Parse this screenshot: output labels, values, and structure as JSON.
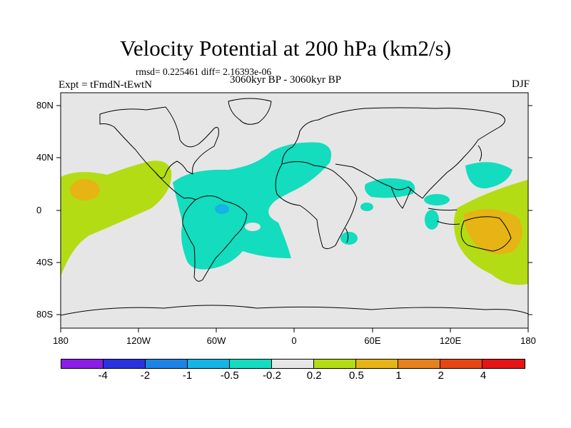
{
  "header": {
    "title": "Velocity Potential at 200 hPa (km2/s)",
    "stats": "rmsd= 0.225461  diff= 2.16393e-06",
    "subtitle": "3060kyr BP - 3060kyr BP",
    "left_label": "Expt = tFmdN-tEwtN",
    "right_label": "DJF"
  },
  "axes": {
    "y_ticks": [
      "80N",
      "40N",
      "0",
      "40S",
      "80S"
    ],
    "x_ticks": [
      "180",
      "120W",
      "60W",
      "0",
      "60E",
      "120E",
      "180"
    ]
  },
  "colorbar": {
    "labels": [
      "-4",
      "-2",
      "-1",
      "-0.5",
      "-0.2",
      "0.2",
      "0.5",
      "1",
      "2",
      "4"
    ],
    "colors": [
      "#8a1ee6",
      "#2a32e0",
      "#1e82e6",
      "#14b4e6",
      "#14dcbe",
      "#e6e6e6",
      "#b4dc14",
      "#e6b414",
      "#e6821e",
      "#e64614",
      "#e61414"
    ]
  },
  "colors": {
    "background": "#e6e6e6",
    "negative_light": "#14dcbe",
    "negative_medium": "#14b4e6",
    "positive_light": "#b4dc14",
    "positive_medium": "#e6b414"
  }
}
